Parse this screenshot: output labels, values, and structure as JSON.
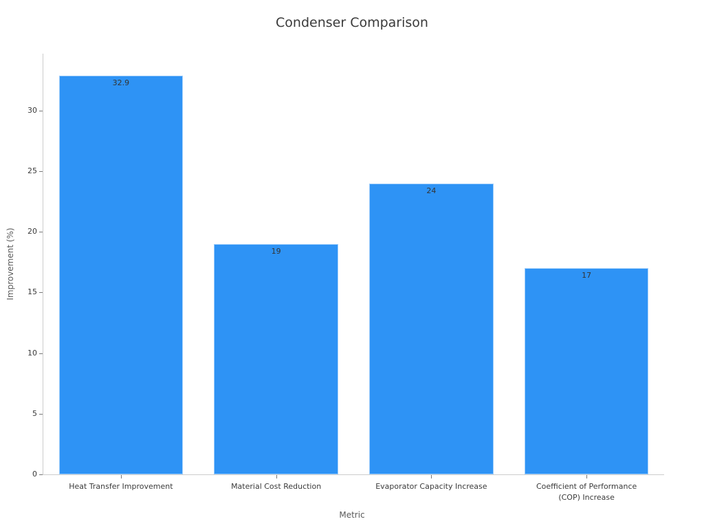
{
  "chart_data": {
    "type": "bar",
    "title": "Condenser Comparison",
    "xlabel": "Metric",
    "ylabel": "Improvement (%)",
    "categories": [
      "Heat Transfer Improvement",
      "Material Cost Reduction",
      "Evaporator Capacity Increase",
      "Coefficient of Performance\n(COP) Increase"
    ],
    "values": [
      32.9,
      19,
      24,
      17
    ],
    "value_labels": [
      "32.9",
      "19",
      "24",
      "17"
    ],
    "yticks": [
      0,
      5,
      10,
      15,
      20,
      25,
      30
    ],
    "ytick_labels": [
      "0",
      "5",
      "10",
      "15",
      "20",
      "25",
      "30"
    ],
    "ylim": [
      0,
      34.7
    ],
    "grid": false,
    "legend": "none",
    "colors": {
      "bar": "#2e93f5",
      "title_text": "#3a3a3a",
      "tick_text": "#3a3a3a",
      "axis_label_text": "#5a5a5a",
      "spine": "#cccccc",
      "bar_value_text": "#333333"
    }
  }
}
